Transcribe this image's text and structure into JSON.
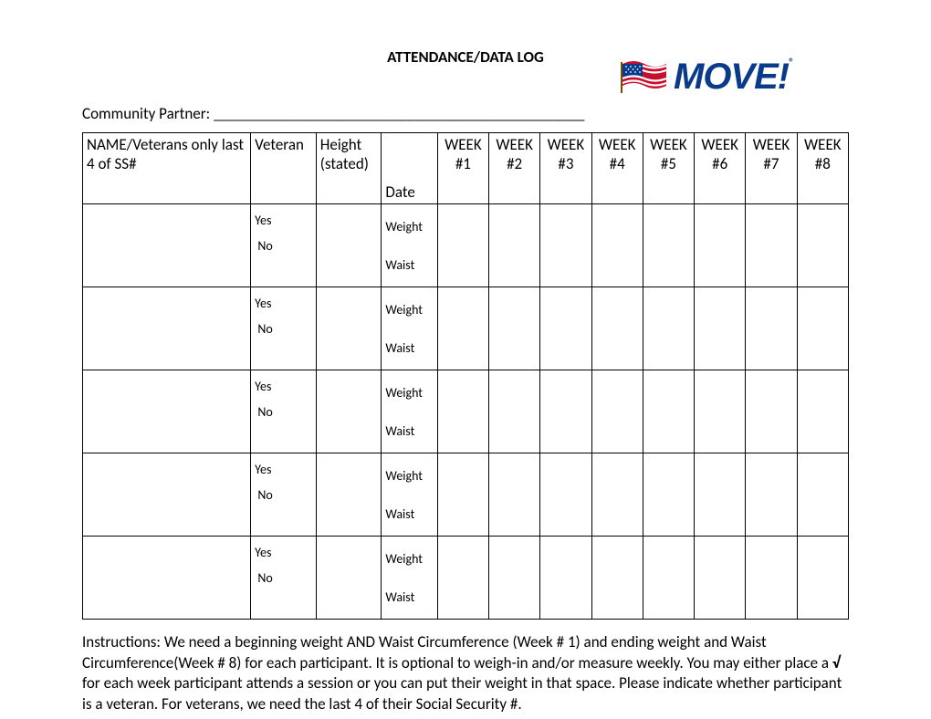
{
  "title": "ATTENDANCE/DATA LOG",
  "logo": {
    "text": "MOVE!",
    "reg": "®"
  },
  "partner": {
    "label": "Community Partner:",
    "line": "________________________________________________"
  },
  "table": {
    "headers": {
      "name": "NAME/Veterans only last 4 of SS#",
      "veteran": "Veteran",
      "height": "Height (stated)",
      "date": "Date",
      "weeks": [
        "WEEK #1",
        "WEEK #2",
        "WEEK #3",
        "WEEK #4",
        "WEEK #5",
        "WEEK #6",
        "WEEK #7",
        "WEEK #8"
      ]
    },
    "row_labels": {
      "yes": "Yes",
      "no": "No",
      "weight": "Weight",
      "waist": "Waist"
    },
    "row_count": 5
  },
  "instructions": {
    "prefix": "Instructions:  We need a beginning weight AND Waist Circumference (Week # 1) and ending weight and Waist Circumference(Week # 8) for each participant.  It is optional to weigh-in and/or measure weekly.  You may either place a ",
    "check": "√",
    "suffix": "  for each week participant attends a session or you can put their weight in that space.  Please indicate whether participant is a veteran.  For veterans, we need the last 4 of their Social Security #."
  }
}
